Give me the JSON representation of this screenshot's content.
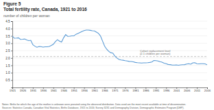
{
  "chart_data": {
    "type": "line",
    "title": "Figure 5",
    "subtitle": "Total fertility rate, Canada, 1921 to 2016",
    "y_label": "number of children per woman",
    "color": "#5b9bd5",
    "x": [
      1921,
      1922,
      1923,
      1924,
      1925,
      1926,
      1927,
      1928,
      1929,
      1930,
      1931,
      1932,
      1933,
      1934,
      1935,
      1936,
      1937,
      1938,
      1939,
      1940,
      1941,
      1942,
      1943,
      1944,
      1945,
      1946,
      1947,
      1948,
      1949,
      1950,
      1951,
      1952,
      1953,
      1954,
      1955,
      1956,
      1957,
      1958,
      1959,
      1960,
      1961,
      1962,
      1963,
      1964,
      1965,
      1966,
      1967,
      1968,
      1969,
      1970,
      1971,
      1972,
      1973,
      1974,
      1975,
      1976,
      1977,
      1978,
      1979,
      1980,
      1981,
      1982,
      1983,
      1984,
      1985,
      1986,
      1987,
      1988,
      1989,
      1990,
      1991,
      1992,
      1993,
      1994,
      1995,
      1996,
      1997,
      1998,
      1999,
      2000,
      2001,
      2002,
      2003,
      2004,
      2005,
      2006,
      2007,
      2008,
      2009,
      2010,
      2011,
      2012,
      2013,
      2014,
      2015,
      2016
    ],
    "values": [
      3.49,
      3.34,
      3.35,
      3.37,
      3.26,
      3.27,
      3.29,
      3.22,
      3.18,
      3.2,
      2.9,
      2.8,
      2.73,
      2.78,
      2.77,
      2.74,
      2.76,
      2.76,
      2.78,
      2.85,
      2.93,
      3.11,
      3.24,
      3.14,
      3.08,
      3.37,
      3.59,
      3.47,
      3.48,
      3.5,
      3.5,
      3.61,
      3.66,
      3.73,
      3.8,
      3.86,
      3.9,
      3.9,
      3.88,
      3.85,
      3.84,
      3.76,
      3.67,
      3.49,
      3.15,
      2.81,
      2.6,
      2.45,
      2.36,
      2.33,
      2.13,
      2.0,
      1.9,
      1.87,
      1.85,
      1.82,
      1.8,
      1.77,
      1.76,
      1.74,
      1.7,
      1.68,
      1.67,
      1.66,
      1.67,
      1.67,
      1.68,
      1.7,
      1.73,
      1.83,
      1.82,
      1.8,
      1.75,
      1.72,
      1.65,
      1.61,
      1.56,
      1.55,
      1.52,
      1.52,
      1.53,
      1.51,
      1.53,
      1.54,
      1.55,
      1.59,
      1.61,
      1.58,
      1.67,
      1.68,
      1.61,
      1.6,
      1.61,
      1.61,
      1.6,
      1.54
    ],
    "xlim": [
      1921,
      2016
    ],
    "xticks": [
      1921,
      1926,
      1931,
      1936,
      1941,
      1946,
      1951,
      1956,
      1961,
      1966,
      1971,
      1976,
      1981,
      1986,
      1991,
      1996,
      2001,
      2006,
      2011,
      2016
    ],
    "ylim": [
      0.0,
      4.5
    ],
    "yticks": [
      0.5,
      {
        "value": 1.0,
        "label": "1.0"
      },
      1.5,
      {
        "value": 2.0,
        "label": "2.0"
      },
      2.5,
      {
        "value": 3.0,
        "label": "3.0"
      },
      3.5,
      {
        "value": 4.0,
        "label": "4.0"
      },
      4.5
    ],
    "grid": true,
    "reference_line": {
      "value": 2.1,
      "label": "Cohort replacement level\n(2.1 children per woman)",
      "color": "#aaaaaa",
      "line_style": "dashed"
    },
    "source": "Notes: Births for which the age of the mother is unknown were prorated using the observed distribution. Data used are the most recent available at time of dissemination.\nSources: Statistics Canada, Canadian Vital Statistics, Births Database, 1921 to 2016; Survey 3231 and Demography Division, Demographic Estimates Program (DEP)."
  }
}
